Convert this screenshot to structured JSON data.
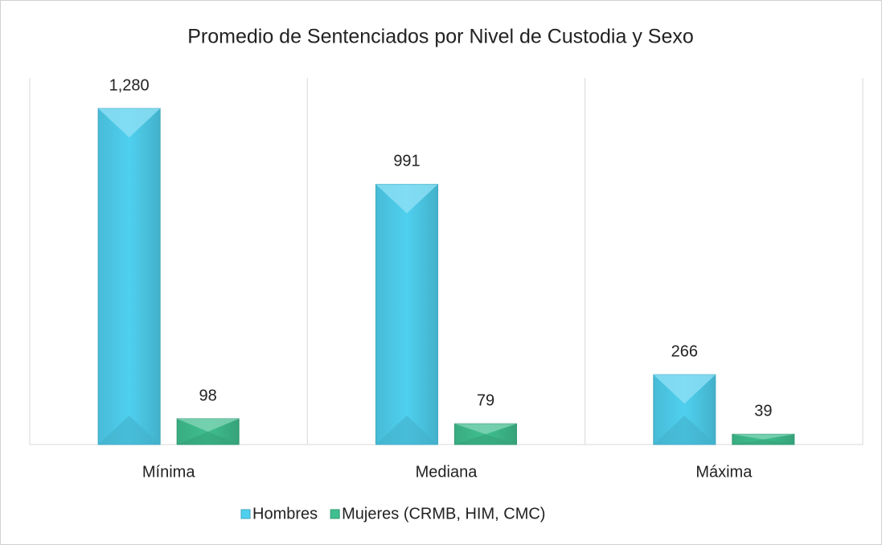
{
  "chart_data": {
    "type": "bar",
    "title": "Promedio de Sentenciados por Nivel de Custodia y Sexo",
    "categories": [
      "Mínima",
      "Mediana",
      "Máxima"
    ],
    "series": [
      {
        "name": "Hombres",
        "color": "#4fd0ef",
        "values": [
          1280,
          991,
          266
        ],
        "value_labels": [
          "1,280",
          "991",
          "266"
        ]
      },
      {
        "name": "Mujeres (CRMB, HIM, CMC)",
        "color": "#3fbf8f",
        "values": [
          98,
          79,
          39
        ]
      }
    ],
    "legend": "bottom"
  }
}
